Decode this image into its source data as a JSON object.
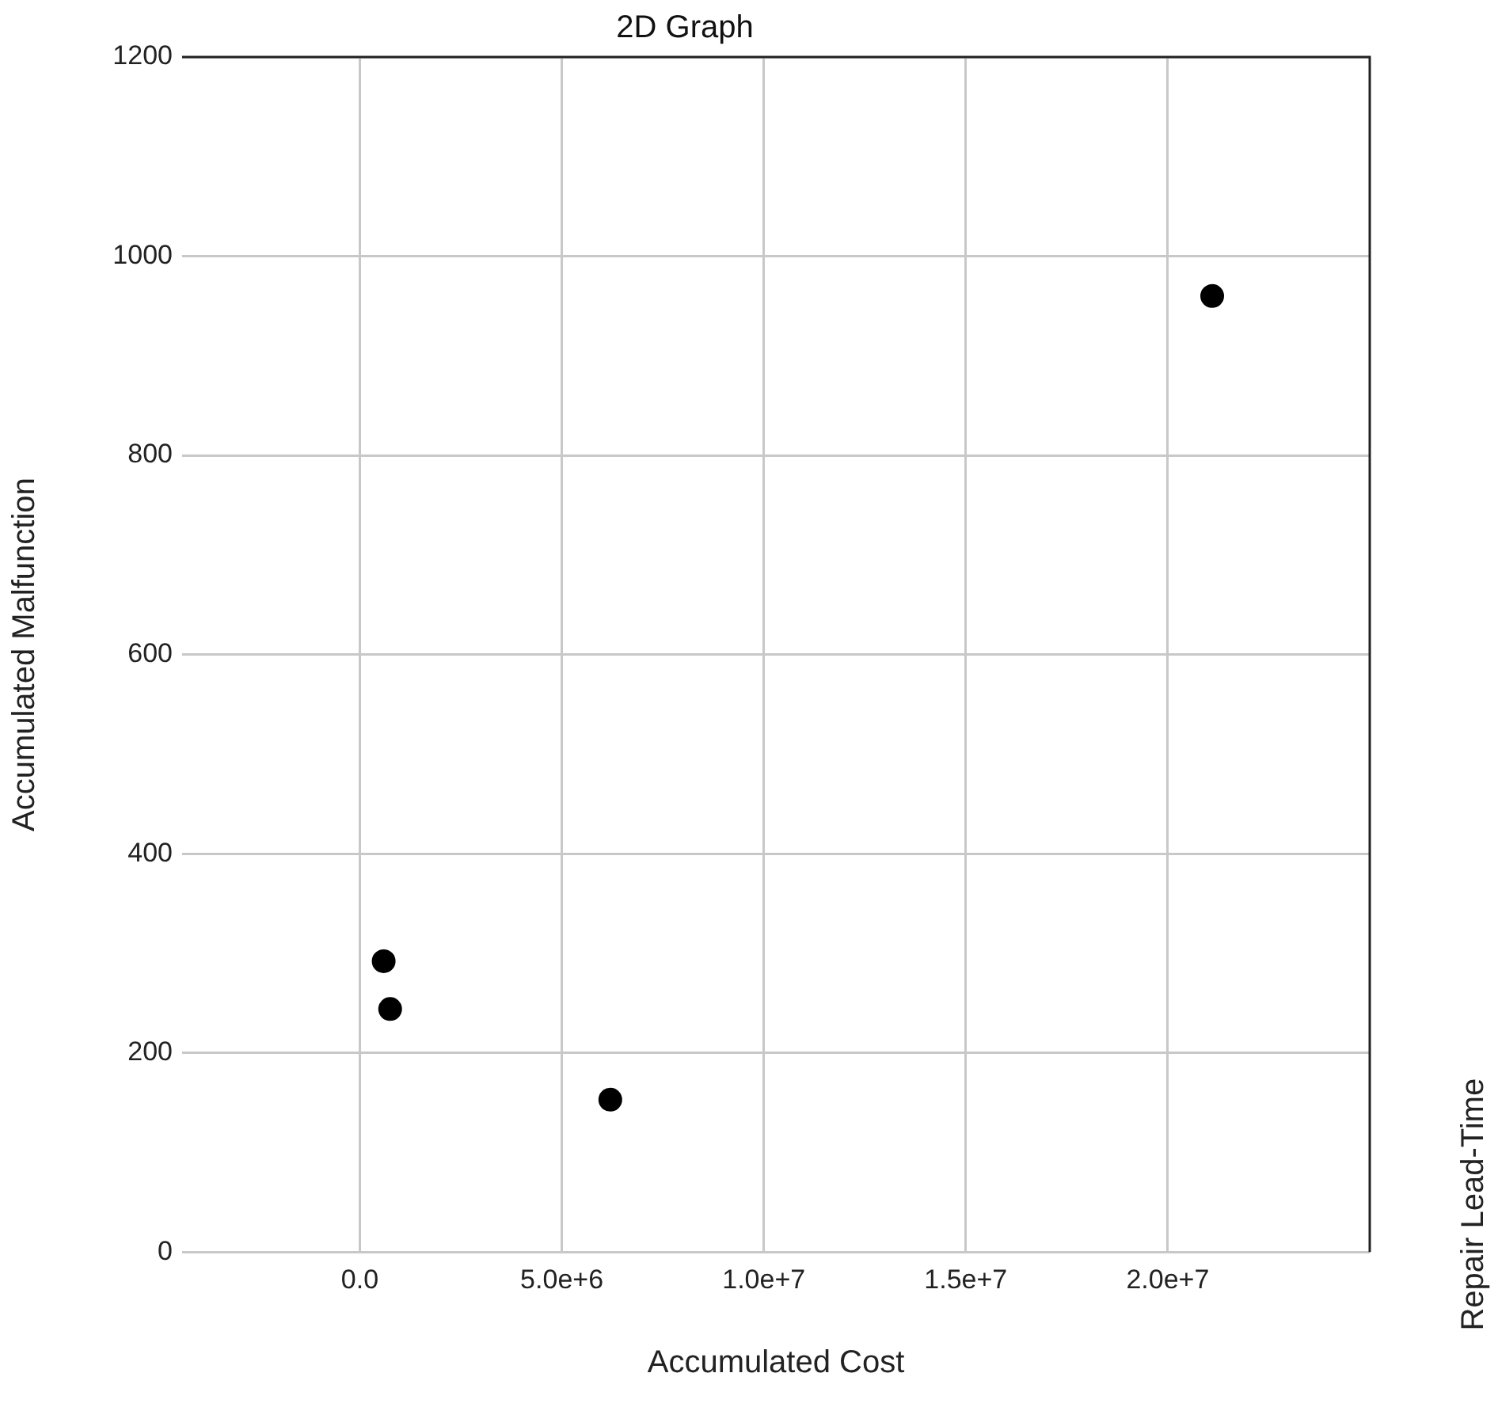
{
  "chart_data": {
    "type": "scatter",
    "title": "2D Graph",
    "xlabel": "Accumulated Cost",
    "ylabel": "Accumulated Malfunction",
    "y2label": "Repair Lead-Time",
    "x": [
      590000,
      750000,
      6200000,
      21100000
    ],
    "series": [
      {
        "color": "#000000",
        "values": [
          292,
          244,
          153,
          960
        ]
      }
    ],
    "xlim": [
      -4400000,
      25000000
    ],
    "xticks": [
      {
        "value": 0,
        "label": "0.0"
      },
      {
        "value": 5000000,
        "label": "5.0e+6"
      },
      {
        "value": 10000000,
        "label": "1.0e+7"
      },
      {
        "value": 15000000,
        "label": "1.5e+7"
      },
      {
        "value": 20000000,
        "label": "2.0e+7"
      }
    ],
    "ylim": [
      0,
      1200
    ],
    "yticks": [
      0,
      200,
      400,
      600,
      800,
      1000,
      1200
    ],
    "grid": true,
    "legend": false,
    "marker": "circle"
  }
}
